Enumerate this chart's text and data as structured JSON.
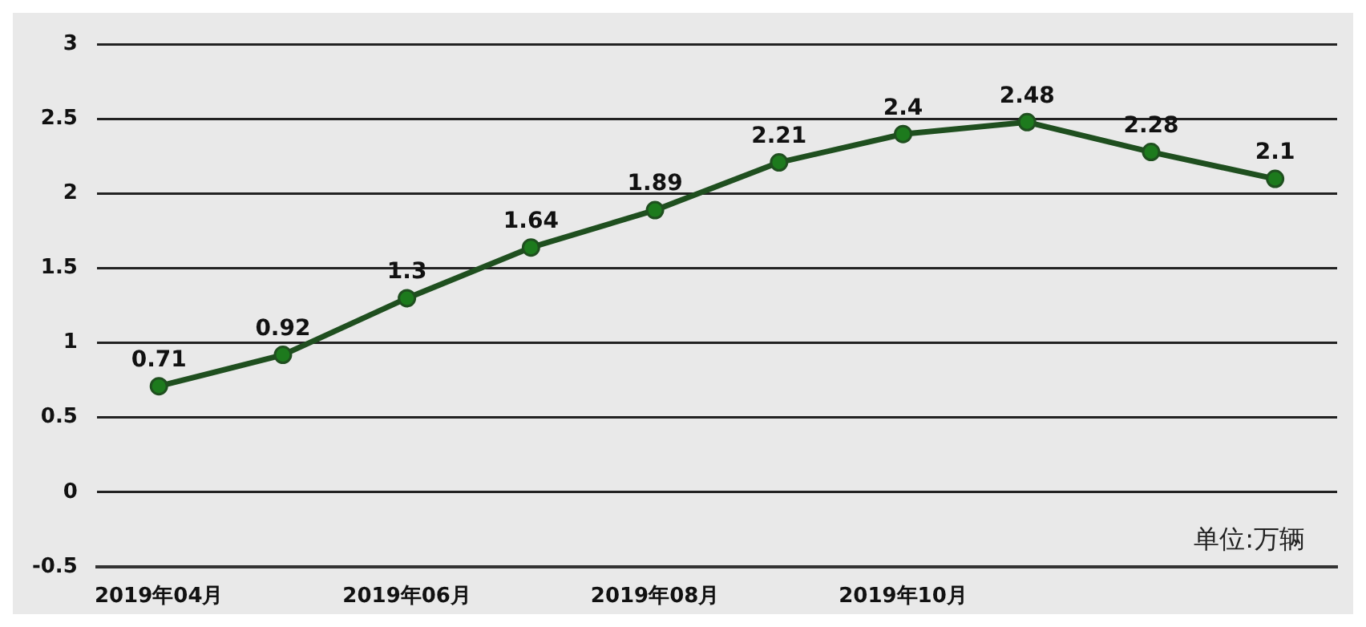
{
  "chart_data": {
    "type": "line",
    "categories": [
      "2019年04月",
      null,
      "2019年06月",
      null,
      "2019年08月",
      null,
      "2019年10月",
      null,
      null,
      null
    ],
    "series": [
      {
        "color": "#1f4f1f",
        "values": [
          0.71,
          0.92,
          1.3,
          1.64,
          1.89,
          2.21,
          2.4,
          2.48,
          2.28,
          2.1
        ]
      }
    ],
    "ylim": [
      -0.5,
      3
    ],
    "yticks": [
      -0.5,
      0,
      0.5,
      1,
      1.5,
      2,
      2.5,
      3
    ],
    "grid": "y",
    "marker": "circle",
    "line_style": "solid",
    "data_labels": true,
    "legend": false,
    "annotations": [
      "单位:万辆"
    ]
  }
}
